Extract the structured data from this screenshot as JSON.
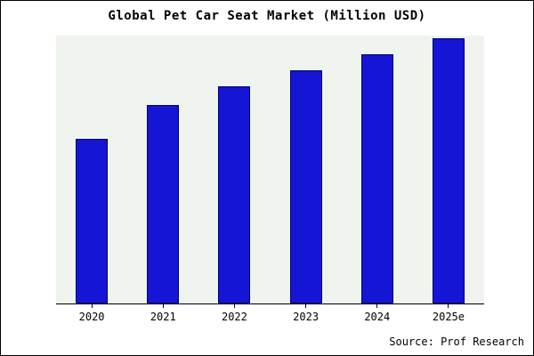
{
  "chart_data": {
    "type": "bar",
    "title": "Global Pet Car Seat Market (Million USD)",
    "categories": [
      "2020",
      "2021",
      "2022",
      "2023",
      "2024",
      "2025e"
    ],
    "values": [
      62,
      75,
      82,
      88,
      94,
      100
    ],
    "ylim": [
      0,
      101
    ],
    "xlabel": "",
    "ylabel": "",
    "grid": false,
    "legend": "none",
    "bar_color": "#1515d6",
    "bar_edge_color": "#000066",
    "plot_bg_color": "#eff5ee",
    "source_note": "Source: Prof Research"
  }
}
